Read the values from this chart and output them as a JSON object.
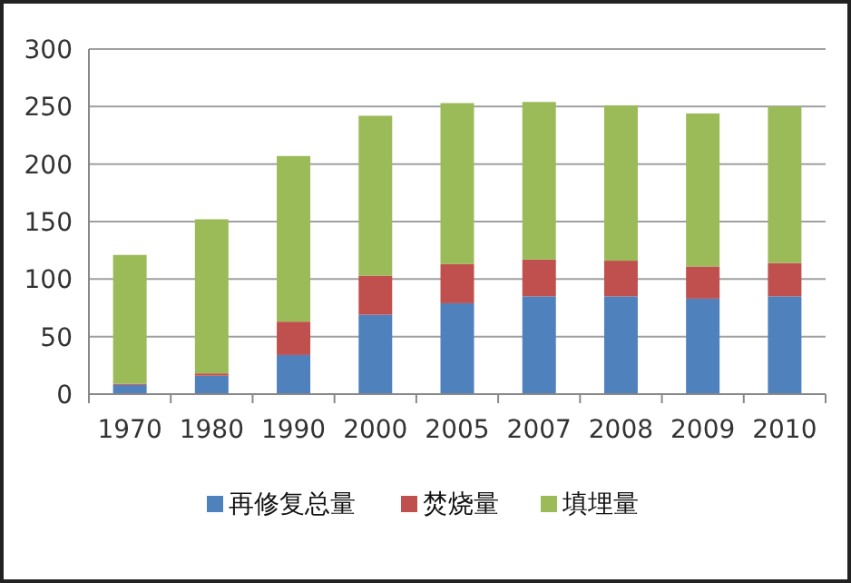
{
  "chart_data": {
    "type": "bar",
    "stacked": true,
    "categories": [
      "1970",
      "1980",
      "1990",
      "2000",
      "2005",
      "2007",
      "2008",
      "2009",
      "2010"
    ],
    "series": [
      {
        "name": "再修复总量",
        "color": "#4f81bd",
        "values": [
          8,
          16,
          34,
          69,
          79,
          85,
          85,
          83,
          85
        ]
      },
      {
        "name": "焚烧量",
        "color": "#c0504d",
        "values": [
          1,
          2,
          29,
          34,
          34,
          32,
          31,
          28,
          29
        ]
      },
      {
        "name": "填埋量",
        "color": "#9bbb59",
        "values": [
          112,
          134,
          144,
          139,
          140,
          137,
          135,
          133,
          136
        ]
      }
    ],
    "ylim": [
      0,
      300
    ],
    "yticks": [
      0,
      50,
      100,
      150,
      200,
      250,
      300
    ],
    "grid": "y",
    "legend": "bottom"
  }
}
